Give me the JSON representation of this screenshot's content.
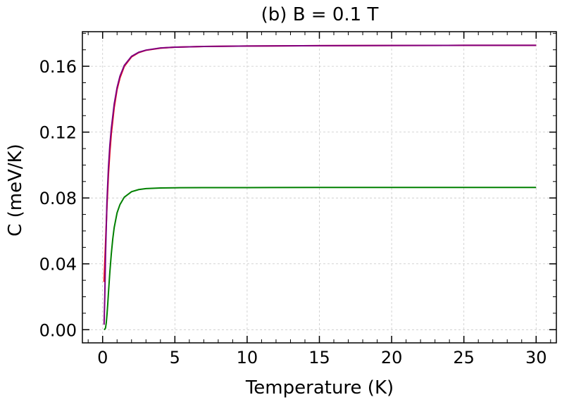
{
  "chart_data": {
    "type": "line",
    "title": "(b) B = 0.1 T",
    "xlabel": "Temperature (K)",
    "ylabel": "C (meV/K)",
    "xlim": [
      -1.4,
      31.4
    ],
    "ylim": [
      -0.008,
      0.181
    ],
    "xticks": [
      0,
      5,
      10,
      15,
      20,
      25,
      30
    ],
    "xtick_labels": [
      "0",
      "5",
      "10",
      "15",
      "20",
      "25",
      "30"
    ],
    "yticks": [
      0.0,
      0.04,
      0.08,
      0.12,
      0.16
    ],
    "ytick_labels": [
      "0.00",
      "0.04",
      "0.08",
      "0.12",
      "0.16"
    ],
    "grid": true,
    "series": [
      {
        "color": "#ff0000",
        "x": [
          0.1,
          0.2,
          0.3,
          0.4,
          0.5,
          0.6,
          0.8,
          1.0,
          1.2,
          1.5,
          2.0,
          2.5,
          3.0,
          4.0,
          5.0,
          7.0,
          10.0,
          15.0,
          20.0,
          25.0,
          30.0
        ],
        "y": [
          0.029,
          0.052,
          0.075,
          0.094,
          0.108,
          0.119,
          0.135,
          0.146,
          0.153,
          0.16,
          0.1657,
          0.1683,
          0.1697,
          0.171,
          0.1716,
          0.172,
          0.1723,
          0.1725,
          0.1726,
          0.1727,
          0.1727
        ]
      },
      {
        "color": "#800080",
        "x": [
          0.1,
          0.15,
          0.2,
          0.3,
          0.4,
          0.5,
          0.6,
          0.8,
          1.0,
          1.2,
          1.5,
          2.0,
          2.5,
          3.0,
          4.0,
          5.0,
          7.0,
          10.0,
          15.0,
          20.0,
          25.0,
          30.0
        ],
        "y": [
          0.003,
          0.02,
          0.045,
          0.078,
          0.098,
          0.112,
          0.122,
          0.137,
          0.147,
          0.154,
          0.1605,
          0.166,
          0.1685,
          0.1698,
          0.1711,
          0.1716,
          0.172,
          0.1723,
          0.1725,
          0.1726,
          0.1727,
          0.1727
        ]
      },
      {
        "color": "#008000",
        "x": [
          0.1,
          0.15,
          0.2,
          0.25,
          0.3,
          0.35,
          0.4,
          0.5,
          0.6,
          0.7,
          0.8,
          1.0,
          1.2,
          1.5,
          2.0,
          2.5,
          3.0,
          4.0,
          5.0,
          7.0,
          10.0,
          15.0,
          20.0,
          25.0,
          30.0
        ],
        "y": [
          0.0,
          0.0003,
          0.001,
          0.004,
          0.009,
          0.015,
          0.022,
          0.035,
          0.046,
          0.055,
          0.062,
          0.071,
          0.076,
          0.0805,
          0.0838,
          0.0851,
          0.0857,
          0.0861,
          0.0862,
          0.0863,
          0.0863,
          0.0864,
          0.0864,
          0.0864,
          0.0864
        ]
      }
    ]
  }
}
